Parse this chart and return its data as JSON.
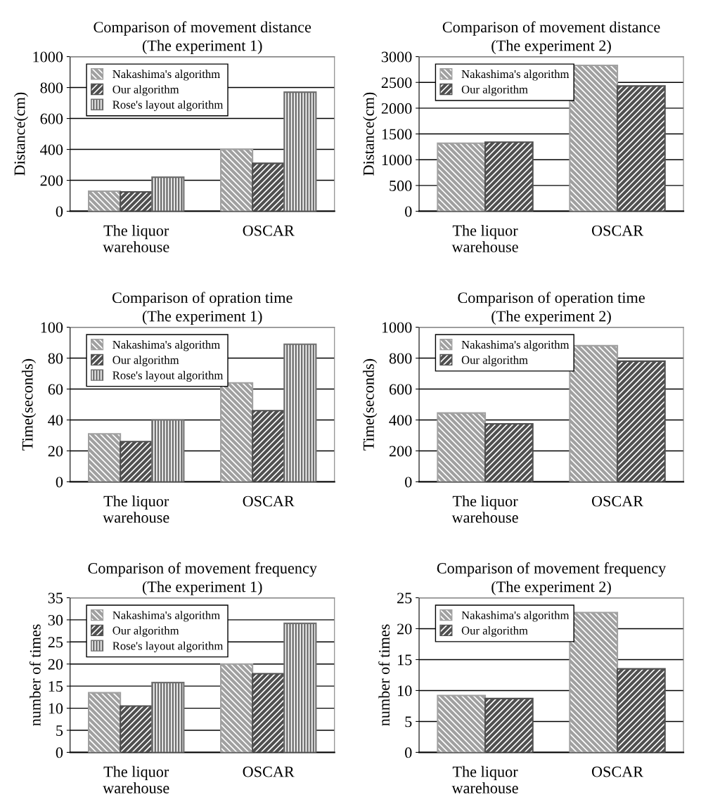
{
  "chart_data": [
    {
      "type": "bar",
      "title": "Comparison of movement distance",
      "subtitle": "(The experiment 1)",
      "ylabel": "Distance(cm)",
      "categories": [
        "The liquor\nwarehouse",
        "OSCAR"
      ],
      "series": [
        {
          "name": "Nakashima's algorithm",
          "color": "#a0a0a0",
          "values": [
            130,
            400
          ]
        },
        {
          "name": "Our algorithm",
          "color": "#505050",
          "values": [
            125,
            310
          ]
        },
        {
          "name": "Rose's layout algorithm",
          "color": "#707070",
          "values": [
            220,
            770
          ]
        }
      ],
      "ylim": [
        0,
        1000
      ],
      "yticks": [
        0,
        200,
        400,
        600,
        800,
        1000
      ],
      "grid": "y",
      "legend": "top left"
    },
    {
      "type": "bar",
      "title": "Comparison of movement distance",
      "subtitle": "(The experiment 2)",
      "ylabel": "Distance(cm)",
      "categories": [
        "The liquor\nwarehouse",
        "OSCAR"
      ],
      "series": [
        {
          "name": "Nakashima's algorithm",
          "color": "#a0a0a0",
          "values": [
            1320,
            2830
          ]
        },
        {
          "name": "Our algorithm",
          "color": "#505050",
          "values": [
            1340,
            2430
          ]
        }
      ],
      "ylim": [
        0,
        3000
      ],
      "yticks": [
        0,
        500,
        1000,
        1500,
        2000,
        2500,
        3000
      ],
      "grid": "y",
      "legend": "top left"
    },
    {
      "type": "bar",
      "title": "Comparison of opration time",
      "subtitle": "(The experiment 1)",
      "ylabel": "Time(seconds)",
      "categories": [
        "The liquor\nwarehouse",
        "OSCAR"
      ],
      "series": [
        {
          "name": "Nakashima's algorithm",
          "color": "#a0a0a0",
          "values": [
            31,
            64
          ]
        },
        {
          "name": "Our algorithm",
          "color": "#505050",
          "values": [
            26,
            46
          ]
        },
        {
          "name": "Rose's layout algorithm",
          "color": "#707070",
          "values": [
            40,
            89
          ]
        }
      ],
      "ylim": [
        0,
        100
      ],
      "yticks": [
        0,
        20,
        40,
        60,
        80,
        100
      ],
      "grid": "y",
      "legend": "top left"
    },
    {
      "type": "bar",
      "title": "Comparison of operation time",
      "subtitle": "(The experiment 2)",
      "ylabel": "Time(seconds)",
      "categories": [
        "The liquor\nwarehouse",
        "OSCAR"
      ],
      "series": [
        {
          "name": "Nakashima's algorithm",
          "color": "#a0a0a0",
          "values": [
            445,
            880
          ]
        },
        {
          "name": "Our algorithm",
          "color": "#505050",
          "values": [
            375,
            780
          ]
        }
      ],
      "ylim": [
        0,
        1000
      ],
      "yticks": [
        0,
        200,
        400,
        600,
        800,
        1000
      ],
      "grid": "y",
      "legend": "top left"
    },
    {
      "type": "bar",
      "title": "Comparison of movement frequency",
      "subtitle": "(The experiment 1)",
      "ylabel": "number of times",
      "categories": [
        "The liquor\nwarehouse",
        "OSCAR"
      ],
      "series": [
        {
          "name": "Nakashima's algorithm",
          "color": "#a0a0a0",
          "values": [
            13.5,
            20
          ]
        },
        {
          "name": "Our algorithm",
          "color": "#505050",
          "values": [
            10.5,
            17.8
          ]
        },
        {
          "name": "Rose's layout algorithm",
          "color": "#707070",
          "values": [
            15.8,
            29.2
          ]
        }
      ],
      "ylim": [
        0,
        35
      ],
      "yticks": [
        0,
        5,
        10,
        15,
        20,
        25,
        30,
        35
      ],
      "grid": "y",
      "legend": "top left"
    },
    {
      "type": "bar",
      "title": "Comparison of movement frequency",
      "subtitle": "(The experiment 2)",
      "ylabel": "number of times",
      "categories": [
        "The liquor\nwarehouse",
        "OSCAR"
      ],
      "series": [
        {
          "name": "Nakashima's algorithm",
          "color": "#a0a0a0",
          "values": [
            9.2,
            22.6
          ]
        },
        {
          "name": "Our algorithm",
          "color": "#505050",
          "values": [
            8.7,
            13.5
          ]
        }
      ],
      "ylim": [
        0,
        25
      ],
      "yticks": [
        0,
        5,
        10,
        15,
        20,
        25
      ],
      "grid": "y",
      "legend": "top left"
    }
  ]
}
